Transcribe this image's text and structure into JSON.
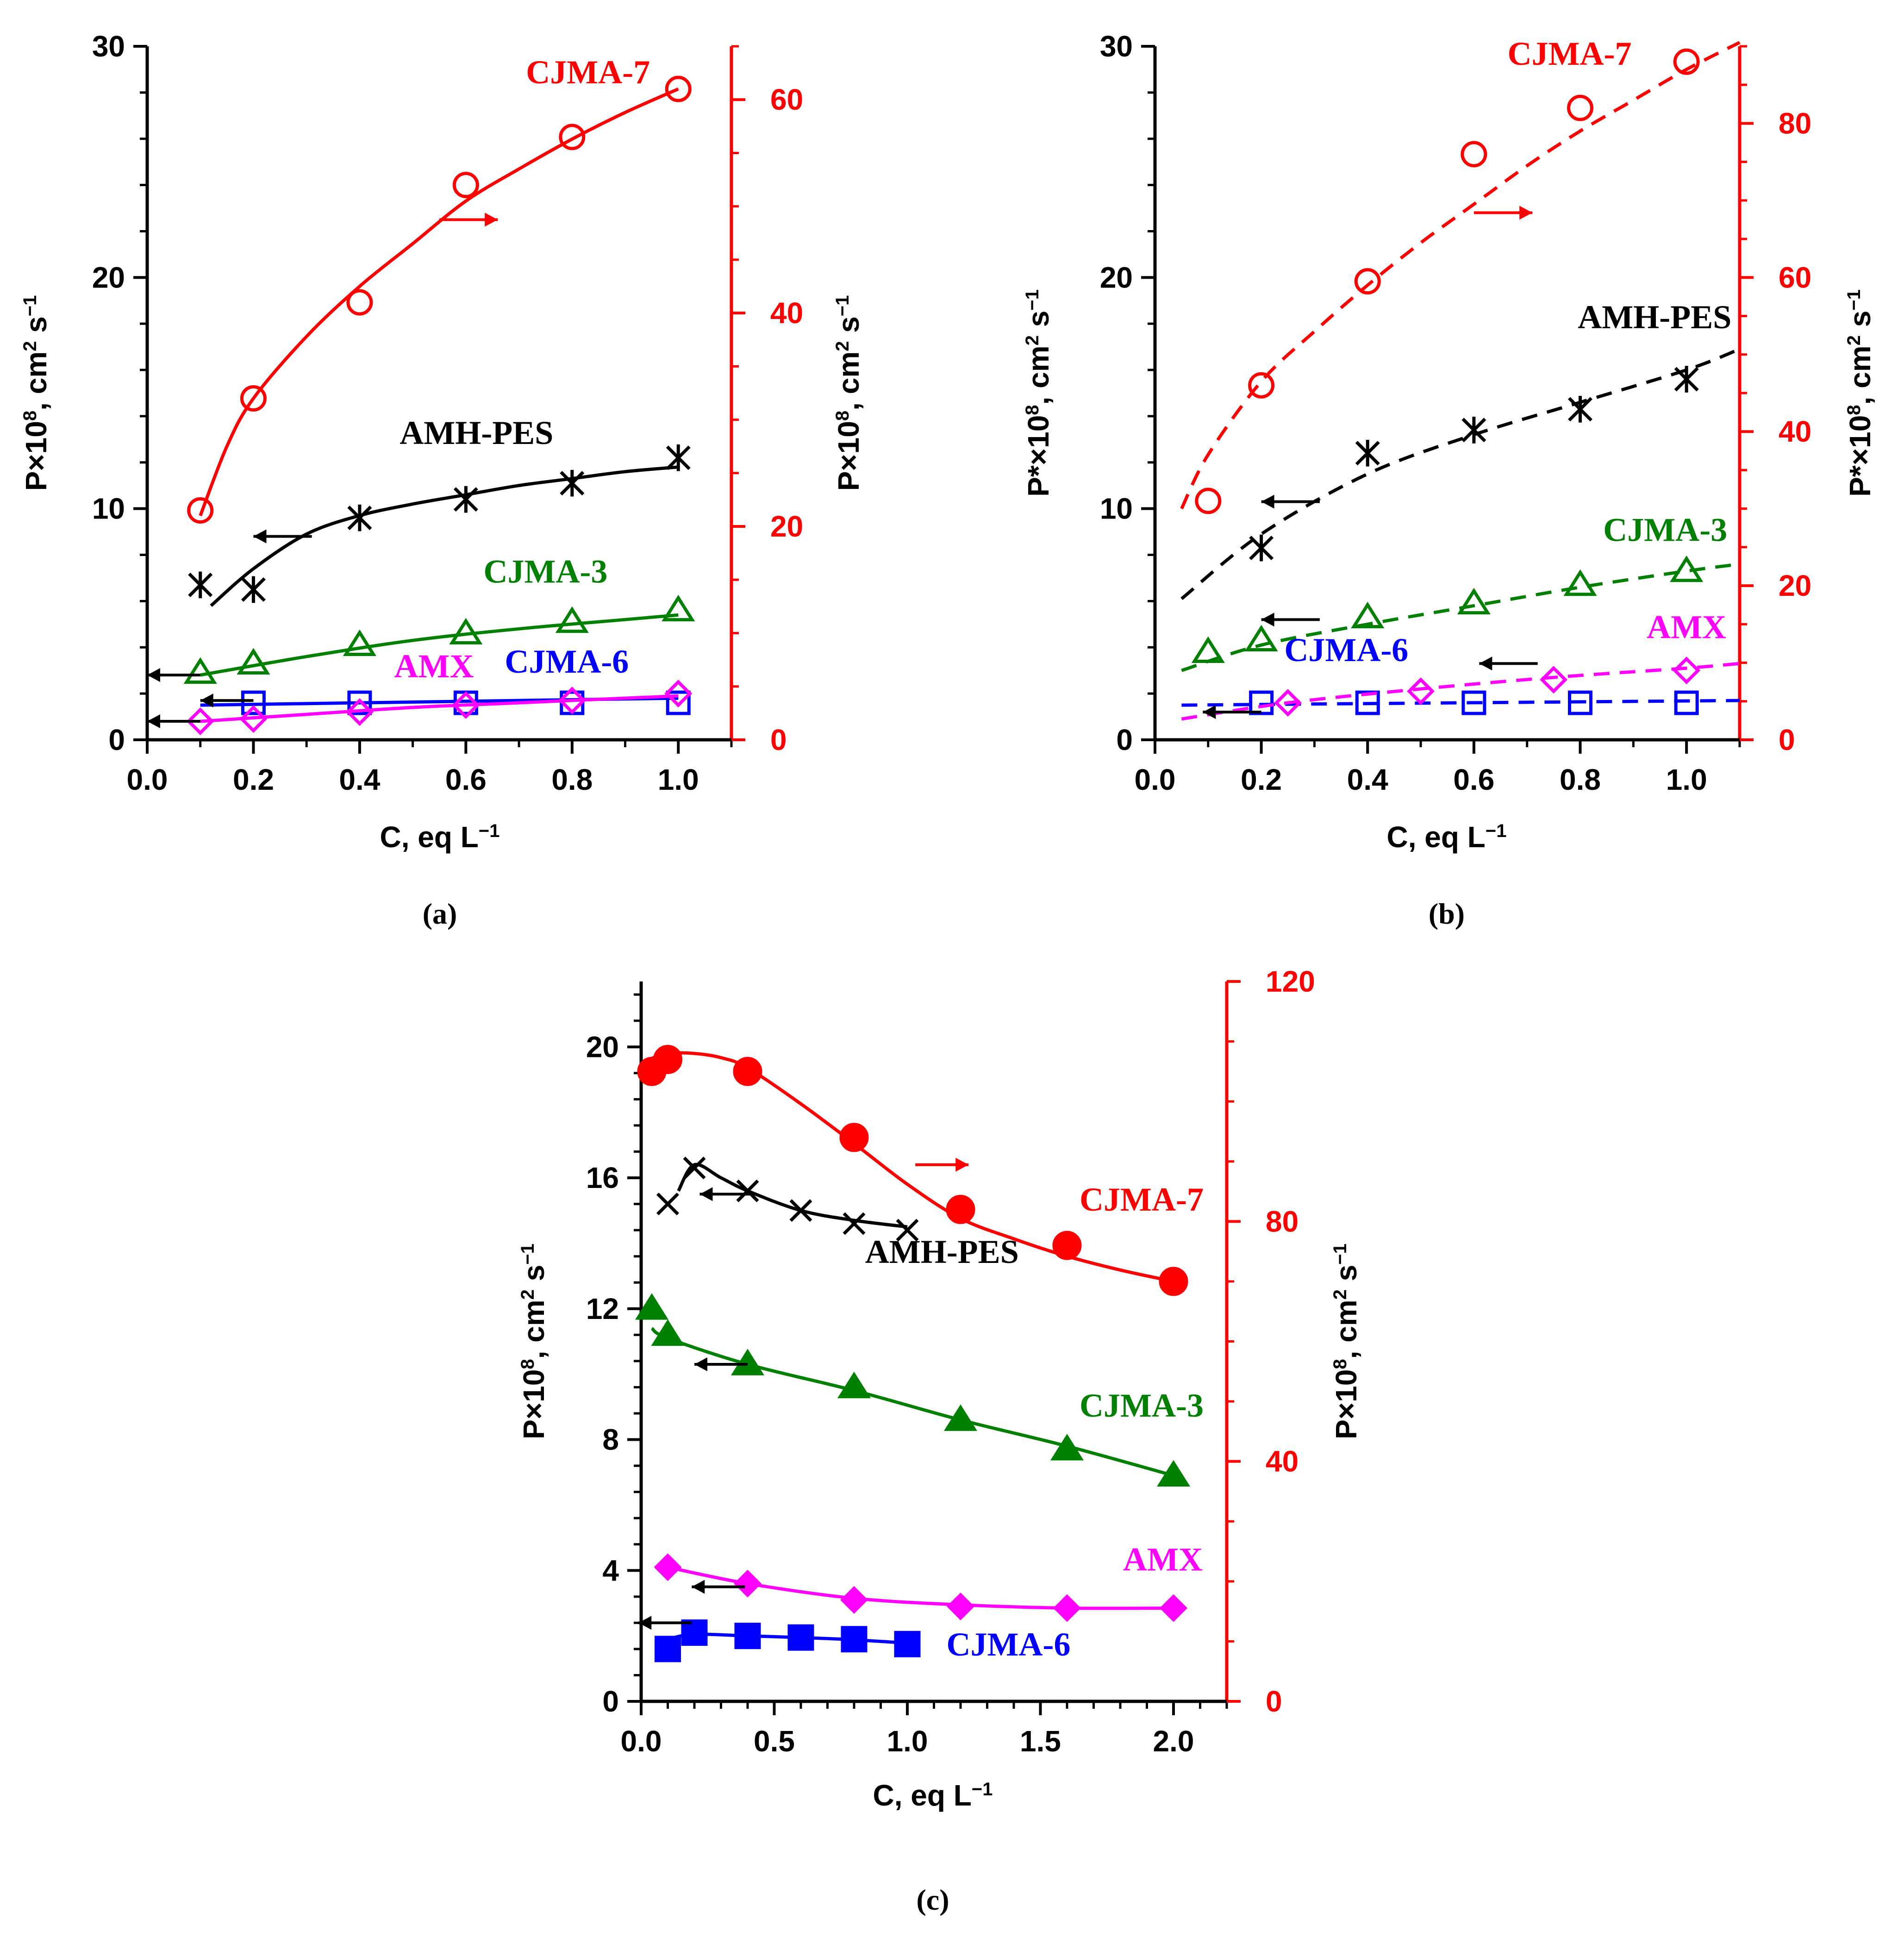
{
  "figure": {
    "panels": [
      "a",
      "b",
      "c"
    ]
  },
  "colors": {
    "black": "#000000",
    "red": "#ff0000",
    "green": "#008000",
    "blue": "#0000ff",
    "magenta": "#ff00ff"
  },
  "chart_data": [
    {
      "id": "a",
      "type": "scatter",
      "panel_label": "(a)",
      "xlabel": "C, eq L",
      "xlabel_sup": "−1",
      "ylabel_left": {
        "pre": "P×10",
        "sup1": "8",
        "mid": ", cm",
        "sup2": "2",
        "post": " s",
        "sup3": "−1"
      },
      "ylabel_right": {
        "pre": "P×10",
        "sup1": "8",
        "mid": ", cm",
        "sup2": "2",
        "post": " s",
        "sup3": "−1"
      },
      "xlim": [
        0,
        1.1
      ],
      "xticks": [
        0,
        0.2,
        0.4,
        0.6,
        0.8,
        1.0
      ],
      "xtick_labels": [
        "0.0",
        "0.2",
        "0.4",
        "0.6",
        "0.8",
        "1.0"
      ],
      "ylim_left": [
        0,
        30
      ],
      "yticks_left": [
        0,
        10,
        20,
        30
      ],
      "ylim_right": [
        0,
        65
      ],
      "yticks_right": [
        0,
        20,
        40,
        60
      ],
      "series": [
        {
          "name": "CJMA-7",
          "color": "red",
          "marker": "circle-open",
          "axis": "right",
          "line": "solid",
          "x": [
            0.1,
            0.2,
            0.4,
            0.6,
            0.8,
            1.0
          ],
          "y": [
            21.5,
            32,
            41,
            52,
            56.5,
            61
          ],
          "fit_x": [
            0.1,
            0.15,
            0.2,
            0.3,
            0.4,
            0.5,
            0.6,
            0.7,
            0.8,
            0.9,
            1.0
          ],
          "fit_y": [
            21,
            27.5,
            32,
            37.8,
            42.5,
            46.5,
            50.5,
            53.5,
            56.3,
            58.8,
            61
          ]
        },
        {
          "name": "AMH-PES",
          "color": "black",
          "marker": "asterisk",
          "axis": "left",
          "line": "solid",
          "x": [
            0.1,
            0.2,
            0.4,
            0.6,
            0.8,
            1.0
          ],
          "y": [
            6.7,
            6.5,
            9.6,
            10.4,
            11.1,
            12.2
          ],
          "fit_x": [
            0.12,
            0.2,
            0.3,
            0.4,
            0.5,
            0.6,
            0.7,
            0.8,
            0.9,
            1.0
          ],
          "fit_y": [
            5.8,
            7.4,
            8.9,
            9.7,
            10.2,
            10.6,
            11.0,
            11.3,
            11.6,
            11.8
          ]
        },
        {
          "name": "CJMA-3",
          "color": "green",
          "marker": "triangle-open",
          "axis": "left",
          "line": "solid",
          "x": [
            0.1,
            0.2,
            0.4,
            0.6,
            0.8,
            1.0
          ],
          "y": [
            2.9,
            3.3,
            4.1,
            4.6,
            5.1,
            5.6
          ],
          "fit_x": [
            0.1,
            0.3,
            0.5,
            0.7,
            0.9,
            1.0
          ],
          "fit_y": [
            2.8,
            3.6,
            4.3,
            4.8,
            5.2,
            5.4
          ]
        },
        {
          "name": "CJMA-6",
          "color": "blue",
          "marker": "square-open",
          "axis": "left",
          "line": "solid",
          "x": [
            0.2,
            0.4,
            0.6,
            0.8,
            1.0
          ],
          "y": [
            1.6,
            1.6,
            1.6,
            1.6,
            1.6
          ],
          "fit_x": [
            0.1,
            0.4,
            0.7,
            1.0
          ],
          "fit_y": [
            1.5,
            1.6,
            1.7,
            1.8
          ]
        },
        {
          "name": "AMX",
          "color": "magenta",
          "marker": "diamond-open",
          "axis": "left",
          "line": "solid",
          "x": [
            0.1,
            0.2,
            0.4,
            0.6,
            0.8,
            1.0
          ],
          "y": [
            0.8,
            0.9,
            1.2,
            1.5,
            1.7,
            2.0
          ],
          "fit_x": [
            0.1,
            0.3,
            0.5,
            0.7,
            1.0
          ],
          "fit_y": [
            0.8,
            1.1,
            1.4,
            1.6,
            1.9
          ]
        }
      ],
      "labels": [
        {
          "text": "CJMA-7",
          "color": "red",
          "x": 0.83,
          "y": 28.4
        },
        {
          "text": "AMH-PES",
          "color": "black",
          "x": 0.62,
          "y": 12.8
        },
        {
          "text": "CJMA-3",
          "color": "green",
          "x": 0.75,
          "y": 6.8
        },
        {
          "text": "CJMA-6",
          "color": "blue",
          "x": 0.79,
          "y": 2.9
        },
        {
          "text": "AMX",
          "color": "magenta",
          "x": 0.54,
          "y": 2.7
        }
      ],
      "arrows": [
        {
          "dir": "right",
          "color": "red",
          "x1": 0.55,
          "x2": 0.66,
          "y": 22.5
        },
        {
          "dir": "left",
          "color": "black",
          "x1": 0.31,
          "x2": 0.2,
          "y": 8.8
        },
        {
          "dir": "left",
          "color": "black",
          "x1": 0.1,
          "x2": 0.0,
          "y": 2.8
        },
        {
          "dir": "left",
          "color": "black",
          "x1": 0.2,
          "x2": 0.1,
          "y": 1.7
        },
        {
          "dir": "left",
          "color": "black",
          "x1": 0.1,
          "x2": 0.0,
          "y": 0.8
        }
      ]
    },
    {
      "id": "b",
      "type": "scatter",
      "panel_label": "(b)",
      "xlabel": "C, eq L",
      "xlabel_sup": "−1",
      "ylabel_left": {
        "pre": "P*×10",
        "sup1": "8",
        "mid": ", cm",
        "sup2": "2",
        "post": " s",
        "sup3": "−1"
      },
      "ylabel_right": {
        "pre": "P*×10",
        "sup1": "8",
        "mid": ", cm",
        "sup2": "2",
        "post": " s",
        "sup3": "−1"
      },
      "xlim": [
        0,
        1.1
      ],
      "xticks": [
        0,
        0.2,
        0.4,
        0.6,
        0.8,
        1.0
      ],
      "xtick_labels": [
        "0.0",
        "0.2",
        "0.4",
        "0.6",
        "0.8",
        "1.0"
      ],
      "ylim_left": [
        0,
        30
      ],
      "yticks_left": [
        0,
        10,
        20,
        30
      ],
      "ylim_right": [
        0,
        90
      ],
      "yticks_right": [
        0,
        20,
        40,
        60,
        80
      ],
      "series": [
        {
          "name": "CJMA-7",
          "color": "red",
          "marker": "circle-open",
          "axis": "right",
          "line": "dashed",
          "x": [
            0.1,
            0.2,
            0.4,
            0.6,
            0.8,
            1.0
          ],
          "y": [
            31,
            46,
            59.5,
            76,
            82,
            88
          ],
          "fit_x": [
            0.05,
            0.1,
            0.2,
            0.3,
            0.4,
            0.5,
            0.6,
            0.7,
            0.8,
            0.9,
            1.0,
            1.1
          ],
          "fit_y": [
            30,
            37,
            46.5,
            53,
            59,
            64.5,
            69.5,
            74.5,
            79,
            83,
            87,
            90.5
          ]
        },
        {
          "name": "AMH-PES",
          "color": "black",
          "marker": "asterisk",
          "axis": "left",
          "line": "dashed",
          "x": [
            0.2,
            0.4,
            0.6,
            0.8,
            1.0
          ],
          "y": [
            8.3,
            12.4,
            13.4,
            14.3,
            15.6
          ],
          "fit_x": [
            0.05,
            0.2,
            0.4,
            0.6,
            0.8,
            1.0,
            1.1
          ],
          "fit_y": [
            6.1,
            8.9,
            11.5,
            13.2,
            14.6,
            16.0,
            16.9
          ]
        },
        {
          "name": "CJMA-3",
          "color": "green",
          "marker": "triangle-open",
          "axis": "left",
          "line": "dashed",
          "x": [
            0.1,
            0.2,
            0.4,
            0.6,
            0.8,
            1.0
          ],
          "y": [
            3.8,
            4.3,
            5.3,
            5.9,
            6.7,
            7.3
          ],
          "fit_x": [
            0.05,
            0.2,
            0.4,
            0.6,
            0.8,
            1.0,
            1.1
          ],
          "fit_y": [
            3.0,
            4.1,
            5.0,
            5.8,
            6.6,
            7.3,
            7.6
          ]
        },
        {
          "name": "CJMA-6",
          "color": "blue",
          "marker": "square-open",
          "axis": "left",
          "line": "dashed",
          "x": [
            0.2,
            0.4,
            0.6,
            0.8,
            1.0
          ],
          "y": [
            1.6,
            1.6,
            1.6,
            1.6,
            1.6
          ],
          "fit_x": [
            0.05,
            1.1
          ],
          "fit_y": [
            1.5,
            1.7
          ]
        },
        {
          "name": "AMX",
          "color": "magenta",
          "marker": "diamond-open",
          "axis": "left",
          "line": "dashed",
          "x": [
            0.25,
            0.5,
            0.75,
            1.0
          ],
          "y": [
            1.6,
            2.1,
            2.6,
            3.0
          ],
          "fit_x": [
            0.05,
            0.25,
            0.5,
            0.75,
            1.0,
            1.1
          ],
          "fit_y": [
            0.9,
            1.6,
            2.2,
            2.7,
            3.1,
            3.3
          ]
        }
      ],
      "labels": [
        {
          "text": "CJMA-7",
          "color": "red",
          "x": 0.78,
          "y": 29.2
        },
        {
          "text": "AMH-PES",
          "color": "black",
          "x": 0.94,
          "y": 17.8
        },
        {
          "text": "CJMA-3",
          "color": "green",
          "x": 0.96,
          "y": 8.6
        },
        {
          "text": "CJMA-6",
          "color": "blue",
          "x": 0.36,
          "y": 3.4
        },
        {
          "text": "AMX",
          "color": "magenta",
          "x": 1.0,
          "y": 4.4
        }
      ],
      "arrows": [
        {
          "dir": "right",
          "color": "red",
          "x1": 0.6,
          "x2": 0.71,
          "y": 22.8
        },
        {
          "dir": "left",
          "color": "black",
          "x1": 0.31,
          "x2": 0.2,
          "y": 10.3
        },
        {
          "dir": "left",
          "color": "black",
          "x1": 0.31,
          "x2": 0.2,
          "y": 5.2
        },
        {
          "dir": "left",
          "color": "black",
          "x1": 0.72,
          "x2": 0.61,
          "y": 3.3
        },
        {
          "dir": "left",
          "color": "black",
          "x1": 0.2,
          "x2": 0.09,
          "y": 1.2
        }
      ]
    },
    {
      "id": "c",
      "type": "scatter",
      "panel_label": "(c)",
      "xlabel": "C, eq L",
      "xlabel_sup": "−1",
      "ylabel_left": {
        "pre": "P×10",
        "sup1": "8",
        "mid": ", cm",
        "sup2": "2",
        "post": " s",
        "sup3": "−1"
      },
      "ylabel_right": {
        "pre": "P×10",
        "sup1": "8",
        "mid": ", cm",
        "sup2": "2",
        "post": " s",
        "sup3": "−1"
      },
      "xlim": [
        0,
        2.2
      ],
      "xticks": [
        0,
        0.5,
        1.0,
        1.5,
        2.0
      ],
      "xtick_labels": [
        "0.0",
        "0.5",
        "1.0",
        "1.5",
        "2.0"
      ],
      "ylim_left": [
        0,
        22
      ],
      "yticks_left": [
        0,
        4,
        8,
        12,
        16,
        20
      ],
      "ylim_right": [
        0,
        120
      ],
      "yticks_right": [
        0,
        40,
        80,
        120
      ],
      "series": [
        {
          "name": "CJMA-7",
          "color": "red",
          "marker": "circle-filled",
          "axis": "right",
          "line": "solid",
          "x": [
            0.04,
            0.1,
            0.4,
            0.8,
            1.2,
            1.6,
            2.0
          ],
          "y": [
            105,
            107,
            105,
            94,
            82,
            76,
            70
          ],
          "fit_x": [
            0.04,
            0.1,
            0.2,
            0.3,
            0.4,
            0.6,
            0.8,
            1.0,
            1.2,
            1.4,
            1.6,
            1.8,
            2.0
          ],
          "fit_y": [
            107.2,
            108,
            108,
            107.3,
            105.6,
            99.6,
            93.0,
            86.2,
            80.5,
            77.1,
            74.2,
            71.9,
            70.0
          ]
        },
        {
          "name": "AMH-PES",
          "color": "black",
          "marker": "cross",
          "axis": "left",
          "line": "solid",
          "x": [
            0.1,
            0.2,
            0.4,
            0.6,
            0.8,
            1.0
          ],
          "y": [
            15.2,
            16.3,
            15.6,
            15.0,
            14.6,
            14.4
          ],
          "fit_x": [
            0.14,
            0.2,
            0.3,
            0.4,
            0.6,
            0.8,
            1.0
          ],
          "fit_y": [
            15.6,
            16.4,
            16.0,
            15.6,
            15.0,
            14.7,
            14.5
          ]
        },
        {
          "name": "CJMA-3",
          "color": "green",
          "marker": "triangle-filled",
          "axis": "left",
          "line": "solid",
          "x": [
            0.04,
            0.1,
            0.4,
            0.8,
            1.2,
            1.6,
            2.0
          ],
          "y": [
            12.0,
            11.2,
            10.3,
            9.6,
            8.6,
            7.7,
            6.9
          ],
          "fit_x": [
            0.04,
            0.1,
            0.4,
            0.8,
            1.2,
            1.6,
            2.0
          ],
          "fit_y": [
            11.4,
            11.1,
            10.3,
            9.5,
            8.6,
            7.8,
            6.9
          ]
        },
        {
          "name": "AMX",
          "color": "magenta",
          "marker": "diamond-filled",
          "axis": "left",
          "line": "solid",
          "x": [
            0.1,
            0.4,
            0.8,
            1.2,
            1.6,
            2.0
          ],
          "y": [
            4.1,
            3.6,
            3.1,
            2.9,
            2.85,
            2.85
          ],
          "fit_x": [
            0.1,
            0.4,
            0.8,
            1.2,
            1.6,
            2.0
          ],
          "fit_y": [
            4.1,
            3.6,
            3.15,
            2.95,
            2.85,
            2.85
          ]
        },
        {
          "name": "CJMA-6",
          "color": "blue",
          "marker": "square-filled",
          "axis": "left",
          "line": "solid",
          "x": [
            0.1,
            0.2,
            0.4,
            0.6,
            0.8,
            1.0
          ],
          "y": [
            1.6,
            2.1,
            2.0,
            1.95,
            1.9,
            1.75
          ],
          "fit_x": [
            0.1,
            0.2,
            0.4,
            0.6,
            0.8,
            1.0
          ],
          "fit_y": [
            1.9,
            2.05,
            2.0,
            1.95,
            1.88,
            1.78
          ]
        }
      ],
      "labels": [
        {
          "text": "CJMA-7",
          "color": "red",
          "x": 1.88,
          "y": 15.0
        },
        {
          "text": "AMH-PES",
          "color": "black",
          "x": 1.13,
          "y": 13.4
        },
        {
          "text": "CJMA-3",
          "color": "green",
          "x": 1.88,
          "y": 8.7
        },
        {
          "text": "AMX",
          "color": "magenta",
          "x": 1.96,
          "y": 4.0
        },
        {
          "text": "CJMA-6",
          "color": "blue",
          "x": 1.38,
          "y": 1.4
        }
      ],
      "arrows": [
        {
          "dir": "right",
          "color": "red",
          "x1": 1.03,
          "x2": 1.23,
          "y": 16.4
        },
        {
          "dir": "left",
          "color": "black",
          "x1": 0.42,
          "x2": 0.22,
          "y": 15.5
        },
        {
          "dir": "left",
          "color": "black",
          "x1": 0.4,
          "x2": 0.2,
          "y": 10.3
        },
        {
          "dir": "left",
          "color": "black",
          "x1": 0.39,
          "x2": 0.19,
          "y": 3.5
        },
        {
          "dir": "left",
          "color": "black",
          "x1": 0.19,
          "x2": -0.01,
          "y": 2.4
        }
      ]
    }
  ]
}
